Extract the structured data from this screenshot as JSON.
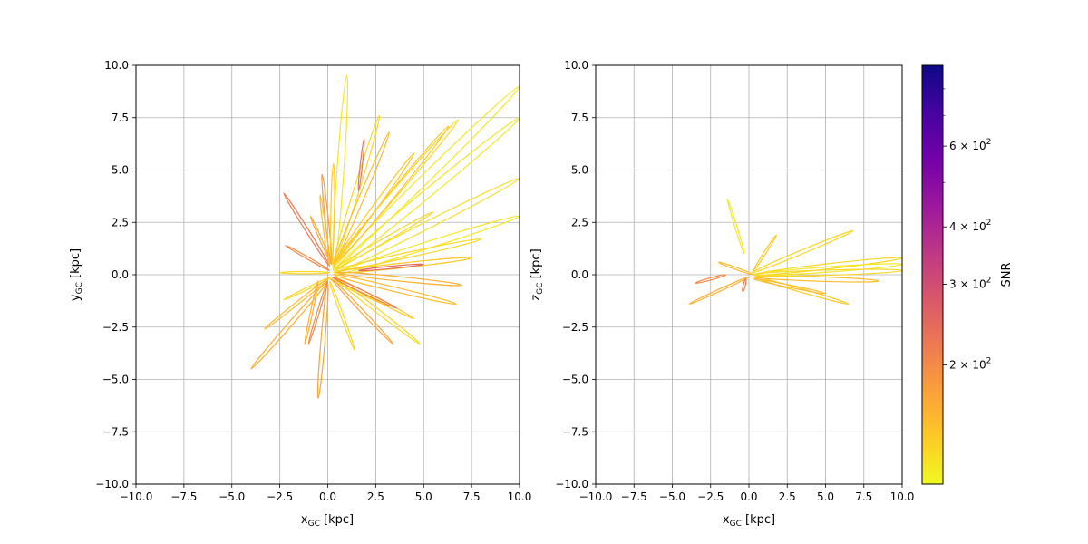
{
  "chart_data": [
    {
      "type": "line",
      "panel": "left",
      "xlabel_main": "x",
      "xlabel_sub": "GC",
      "xlabel_unit": " [kpc]",
      "ylabel_main": "y",
      "ylabel_sub": "GC",
      "ylabel_unit": " [kpc]",
      "xlim": [
        -10,
        10
      ],
      "ylim": [
        -10,
        10
      ],
      "xticks": [
        -10,
        -7.5,
        -5,
        -2.5,
        0,
        2.5,
        5,
        7.5,
        10
      ],
      "xtick_labels": [
        "−10.0",
        "−7.5",
        "−5.0",
        "−2.5",
        "0.0",
        "2.5",
        "5.0",
        "7.5",
        "10.0"
      ],
      "yticks": [
        -10,
        -7.5,
        -5,
        -2.5,
        0,
        2.5,
        5,
        7.5,
        10
      ],
      "ytick_labels": [
        "−10.0",
        "−7.5",
        "−5.0",
        "−2.5",
        "0.0",
        "2.5",
        "5.0",
        "7.5",
        "10.0"
      ],
      "grid": true,
      "orbits": [
        {
          "snr": 120,
          "points": [
            [
              0.3,
              0.2
            ],
            [
              1.0,
              9.5
            ]
          ]
        },
        {
          "snr": 120,
          "points": [
            [
              0.3,
              0.3
            ],
            [
              10.0,
              9.0
            ]
          ]
        },
        {
          "snr": 120,
          "points": [
            [
              0.3,
              0.2
            ],
            [
              10.0,
              7.5
            ]
          ]
        },
        {
          "snr": 125,
          "points": [
            [
              0.3,
              0.1
            ],
            [
              10.0,
              4.6
            ]
          ]
        },
        {
          "snr": 120,
          "points": [
            [
              0.3,
              0.0
            ],
            [
              10.0,
              2.8
            ]
          ]
        },
        {
          "snr": 130,
          "points": [
            [
              0.3,
              0.5
            ],
            [
              6.8,
              7.4
            ]
          ]
        },
        {
          "snr": 140,
          "points": [
            [
              0.3,
              0.4
            ],
            [
              6.3,
              7.1
            ]
          ]
        },
        {
          "snr": 130,
          "points": [
            [
              0.3,
              0.5
            ],
            [
              2.7,
              7.6
            ]
          ]
        },
        {
          "snr": 150,
          "points": [
            [
              0.3,
              0.5
            ],
            [
              3.2,
              6.8
            ]
          ]
        },
        {
          "snr": 230,
          "points": [
            [
              1.6,
              4.0
            ],
            [
              1.9,
              6.5
            ]
          ]
        },
        {
          "snr": 140,
          "points": [
            [
              0.3,
              0.5
            ],
            [
              4.5,
              5.8
            ]
          ]
        },
        {
          "snr": 180,
          "points": [
            [
              0.2,
              0.5
            ],
            [
              -0.3,
              4.8
            ]
          ]
        },
        {
          "snr": 140,
          "points": [
            [
              0.2,
              0.5
            ],
            [
              0.3,
              5.3
            ]
          ]
        },
        {
          "snr": 220,
          "points": [
            [
              0.1,
              0.4
            ],
            [
              -2.3,
              3.9
            ]
          ]
        },
        {
          "snr": 200,
          "points": [
            [
              0.1,
              0.2
            ],
            [
              -2.2,
              1.4
            ]
          ]
        },
        {
          "snr": 170,
          "points": [
            [
              0.2,
              0.5
            ],
            [
              -0.9,
              2.8
            ]
          ]
        },
        {
          "snr": 150,
          "points": [
            [
              0.1,
              0.4
            ],
            [
              -0.4,
              3.8
            ]
          ]
        },
        {
          "snr": 130,
          "points": [
            [
              0.4,
              0.3
            ],
            [
              5.5,
              3.0
            ]
          ]
        },
        {
          "snr": 130,
          "points": [
            [
              0.4,
              0.2
            ],
            [
              8.0,
              1.7
            ]
          ]
        },
        {
          "snr": 140,
          "points": [
            [
              0.4,
              0.1
            ],
            [
              7.5,
              0.8
            ]
          ]
        },
        {
          "snr": 130,
          "points": [
            [
              0.2,
              -0.1
            ],
            [
              -2.3,
              -1.2
            ]
          ]
        },
        {
          "snr": 150,
          "points": [
            [
              0.0,
              -0.2
            ],
            [
              -3.3,
              -2.6
            ]
          ]
        },
        {
          "snr": 160,
          "points": [
            [
              0.0,
              -0.3
            ],
            [
              -4.0,
              -4.5
            ]
          ]
        },
        {
          "snr": 170,
          "points": [
            [
              0.0,
              -0.4
            ],
            [
              -0.5,
              -5.9
            ]
          ]
        },
        {
          "snr": 200,
          "points": [
            [
              0.0,
              -0.3
            ],
            [
              -1.0,
              -3.3
            ]
          ]
        },
        {
          "snr": 130,
          "points": [
            [
              0.1,
              -0.3
            ],
            [
              1.4,
              -3.6
            ]
          ]
        },
        {
          "snr": 130,
          "points": [
            [
              0.1,
              -0.2
            ],
            [
              3.2,
              -1.5
            ]
          ]
        },
        {
          "snr": 140,
          "points": [
            [
              0.3,
              -0.1
            ],
            [
              4.5,
              -2.1
            ]
          ]
        },
        {
          "snr": 130,
          "points": [
            [
              0.3,
              -0.1
            ],
            [
              4.8,
              -3.3
            ]
          ]
        },
        {
          "snr": 150,
          "points": [
            [
              0.3,
              0.0
            ],
            [
              6.7,
              -1.4
            ]
          ]
        },
        {
          "snr": 170,
          "points": [
            [
              0.2,
              -0.2
            ],
            [
              3.4,
              -3.3
            ]
          ]
        },
        {
          "snr": 160,
          "points": [
            [
              0.5,
              0.1
            ],
            [
              7.0,
              -0.5
            ]
          ]
        },
        {
          "snr": 250,
          "points": [
            [
              1.6,
              0.2
            ],
            [
              5.0,
              0.5
            ]
          ]
        },
        {
          "snr": 160,
          "points": [
            [
              -0.5,
              -0.3
            ],
            [
              -1.2,
              -3.3
            ]
          ]
        },
        {
          "snr": 130,
          "points": [
            [
              0.1,
              0.1
            ],
            [
              -2.5,
              0.1
            ]
          ]
        },
        {
          "snr": 220,
          "points": [
            [
              0.2,
              -0.1
            ],
            [
              3.6,
              -1.6
            ]
          ]
        }
      ]
    },
    {
      "type": "line",
      "panel": "right",
      "xlabel_main": "x",
      "xlabel_sub": "GC",
      "xlabel_unit": " [kpc]",
      "ylabel_main": "z",
      "ylabel_sub": "GC",
      "ylabel_unit": " [kpc]",
      "xlim": [
        -10,
        10
      ],
      "ylim": [
        -10,
        10
      ],
      "xticks": [
        -10,
        -7.5,
        -5,
        -2.5,
        0,
        2.5,
        5,
        7.5,
        10
      ],
      "xtick_labels": [
        "−10.0",
        "−7.5",
        "−5.0",
        "−2.5",
        "0.0",
        "2.5",
        "5.0",
        "7.5",
        "10.0"
      ],
      "yticks": [
        -10,
        -7.5,
        -5,
        -2.5,
        0,
        2.5,
        5,
        7.5,
        10
      ],
      "ytick_labels": [
        "−10.0",
        "−7.5",
        "−5.0",
        "−2.5",
        "0.0",
        "2.5",
        "5.0",
        "7.5",
        "10.0"
      ],
      "grid": true,
      "orbits": [
        {
          "snr": 120,
          "points": [
            [
              -1.4,
              3.6
            ],
            [
              -0.3,
              1.0
            ]
          ]
        },
        {
          "snr": 130,
          "points": [
            [
              0.2,
              0.1
            ],
            [
              6.8,
              2.1
            ]
          ]
        },
        {
          "snr": 160,
          "points": [
            [
              0.0,
              -0.1
            ],
            [
              -3.9,
              -1.4
            ]
          ]
        },
        {
          "snr": 140,
          "points": [
            [
              0.3,
              0.2
            ],
            [
              1.8,
              1.9
            ]
          ]
        },
        {
          "snr": 150,
          "points": [
            [
              -2.0,
              0.6
            ],
            [
              0.3,
              0.0
            ]
          ]
        },
        {
          "snr": 130,
          "points": [
            [
              0.3,
              0.0
            ],
            [
              10.0,
              0.8
            ]
          ]
        },
        {
          "snr": 120,
          "points": [
            [
              0.3,
              0.0
            ],
            [
              10.0,
              0.5
            ]
          ]
        },
        {
          "snr": 140,
          "points": [
            [
              0.3,
              -0.1
            ],
            [
              6.5,
              -1.4
            ]
          ]
        },
        {
          "snr": 150,
          "points": [
            [
              0.3,
              -0.1
            ],
            [
              8.5,
              -0.3
            ]
          ]
        },
        {
          "snr": 220,
          "points": [
            [
              -0.2,
              -0.2
            ],
            [
              -0.4,
              -0.8
            ]
          ]
        },
        {
          "snr": 200,
          "points": [
            [
              -1.5,
              0.0
            ],
            [
              -3.5,
              -0.4
            ]
          ]
        },
        {
          "snr": 130,
          "points": [
            [
              0.3,
              0.0
            ],
            [
              10.0,
              0.2
            ]
          ]
        },
        {
          "snr": 150,
          "points": [
            [
              0.3,
              -0.2
            ],
            [
              5.0,
              -0.9
            ]
          ]
        }
      ]
    }
  ],
  "colorbar": {
    "label": "SNR",
    "min": 110,
    "max": 900,
    "scale": "log",
    "colormap": "plasma_r",
    "major_ticks": [
      {
        "value": 200,
        "mantissa": "2",
        "base": "× 10",
        "exp": "2"
      },
      {
        "value": 300,
        "mantissa": "3",
        "base": "× 10",
        "exp": "2"
      },
      {
        "value": 400,
        "mantissa": "4",
        "base": "× 10",
        "exp": "2"
      },
      {
        "value": 600,
        "mantissa": "6",
        "base": "× 10",
        "exp": "2"
      }
    ],
    "minor_ticks": [
      500,
      700,
      800
    ],
    "colors": [
      "#f0f921",
      "#fdca26",
      "#fb9f3a",
      "#ed7953",
      "#d8576b",
      "#bd3786",
      "#9c179e",
      "#7201a8",
      "#46039f",
      "#0d0887"
    ]
  }
}
